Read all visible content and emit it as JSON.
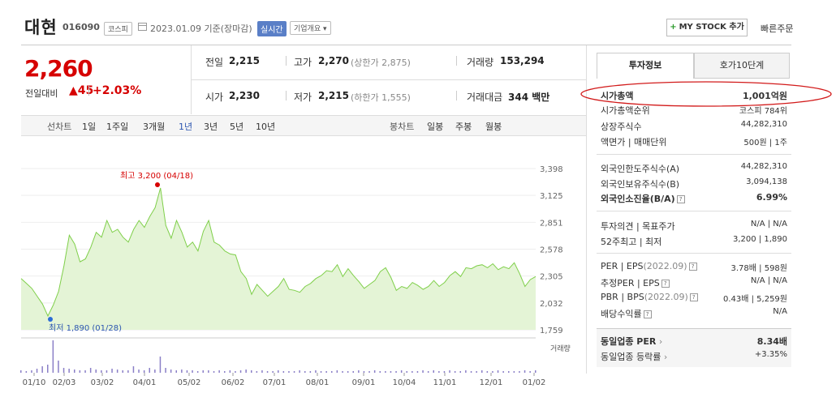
{
  "header": {
    "name": "대현",
    "code": "016090",
    "market": "코스피",
    "date_text": "2023.01.09 기준(장마감)",
    "realtime_label": "실시간",
    "overview_label": "기업개요",
    "mystock_label": "MY STOCK 추가",
    "quick_order_label": "빠른주문"
  },
  "price": {
    "current": "2,260",
    "prev_label": "전일대비",
    "change": "45",
    "change_pct": "+2.03%"
  },
  "quote": {
    "prev_close_label": "전일",
    "prev_close": "2,215",
    "high_label": "고가",
    "high": "2,270",
    "upper_limit": "(상한가 2,875)",
    "volume_label": "거래량",
    "volume": "153,294",
    "open_label": "시가",
    "open": "2,230",
    "low_label": "저가",
    "low": "2,215",
    "lower_limit": "(하한가 1,555)",
    "amount_label": "거래대금",
    "amount": "344 백만"
  },
  "chart_tabs": {
    "line_label": "선차트",
    "periods": [
      "1일",
      "1주일",
      "3개월",
      "1년",
      "3년",
      "5년",
      "10년"
    ],
    "active_period": "1년",
    "candle_label": "봉차트",
    "candles": [
      "일봉",
      "주봉",
      "월봉"
    ]
  },
  "chart_data": {
    "type": "area",
    "yticks": [
      "3,398",
      "3,125",
      "2,851",
      "2,578",
      "2,305",
      "2,032",
      "1,759"
    ],
    "ylim": [
      1759,
      3398
    ],
    "xticks": [
      "01/10",
      "02/03",
      "03/02",
      "04/01",
      "05/02",
      "06/02",
      "07/01",
      "08/01",
      "09/01",
      "10/04",
      "11/01",
      "12/01",
      "01/02"
    ],
    "high_label": "최고 3,200 (04/18)",
    "low_label": "최저 1,890 (01/28)",
    "volume_label": "거래량",
    "price_colors": {
      "line": "#7fcf4a",
      "fill": "#e4f4d6"
    },
    "series": [
      2280,
      2230,
      2180,
      2100,
      2020,
      1900,
      2010,
      2150,
      2410,
      2720,
      2630,
      2450,
      2480,
      2600,
      2750,
      2700,
      2870,
      2750,
      2780,
      2700,
      2650,
      2780,
      2870,
      2800,
      2910,
      3000,
      3200,
      2820,
      2690,
      2870,
      2750,
      2600,
      2650,
      2560,
      2760,
      2870,
      2650,
      2620,
      2560,
      2530,
      2520,
      2350,
      2280,
      2120,
      2220,
      2160,
      2100,
      2150,
      2200,
      2280,
      2170,
      2160,
      2140,
      2200,
      2230,
      2280,
      2310,
      2360,
      2350,
      2420,
      2300,
      2380,
      2310,
      2250,
      2180,
      2220,
      2260,
      2350,
      2390,
      2290,
      2160,
      2200,
      2180,
      2240,
      2210,
      2170,
      2200,
      2260,
      2200,
      2240,
      2310,
      2350,
      2300,
      2390,
      2380,
      2410,
      2420,
      2390,
      2430,
      2370,
      2400,
      2380,
      2440,
      2330,
      2200,
      2270,
      2300
    ],
    "volume": [
      3,
      2,
      3,
      5,
      8,
      10,
      40,
      15,
      6,
      5,
      4,
      3,
      3,
      6,
      4,
      3,
      3,
      5,
      4,
      3,
      3,
      8,
      4,
      3,
      6,
      4,
      20,
      6,
      4,
      3,
      4,
      3,
      3,
      2,
      3,
      3,
      2,
      3,
      2,
      3,
      2,
      3,
      4,
      3,
      2,
      3,
      2,
      2,
      3,
      2,
      2,
      2,
      3,
      2,
      2,
      3,
      2,
      2,
      2,
      3,
      2,
      2,
      2,
      3,
      2,
      2,
      3,
      2,
      2,
      2,
      2,
      3,
      2,
      2,
      2,
      3,
      2,
      3,
      2,
      2,
      3,
      2,
      2,
      3,
      2,
      2,
      3,
      2,
      2,
      3,
      2,
      2,
      2,
      2,
      3,
      2,
      3
    ]
  },
  "invest_info": {
    "tab_active": "투자정보",
    "tab_other": "호가10단계",
    "rows1": [
      {
        "label": "시가총액",
        "value": "1,001억원"
      },
      {
        "label": "시가총액순위",
        "value": "코스피 784위"
      },
      {
        "label": "상장주식수",
        "value": "44,282,310"
      },
      {
        "label": "액면가 | 매매단위",
        "value": "500원 | 1주"
      }
    ],
    "rows2": [
      {
        "label": "외국인한도주식수(A)",
        "value": "44,282,310"
      },
      {
        "label": "외국인보유주식수(B)",
        "value": "3,094,138"
      },
      {
        "label": "외국인소진율(B/A)",
        "value": "6.99%"
      }
    ],
    "rows3": [
      {
        "label": "투자의견 | 목표주가",
        "value": "N/A | N/A"
      },
      {
        "label": "52주최고 | 최저",
        "value": "3,200 | 1,890"
      }
    ],
    "rows4": [
      {
        "label": "PER | EPS",
        "sub": "(2022.09)",
        "value": "3.78배 | 598원"
      },
      {
        "label": "추정PER | EPS",
        "sub": "",
        "value": "N/A | N/A"
      },
      {
        "label": "PBR | BPS",
        "sub": "(2022.09)",
        "value": "0.43배 | 5,259원"
      },
      {
        "label": "배당수익률",
        "sub": "",
        "value": "N/A"
      }
    ],
    "peer_per_label": "동일업종 PER",
    "peer_per": "8.34배",
    "peer_rate_label": "동일업종 등락률",
    "peer_rate": "+3.35%"
  }
}
